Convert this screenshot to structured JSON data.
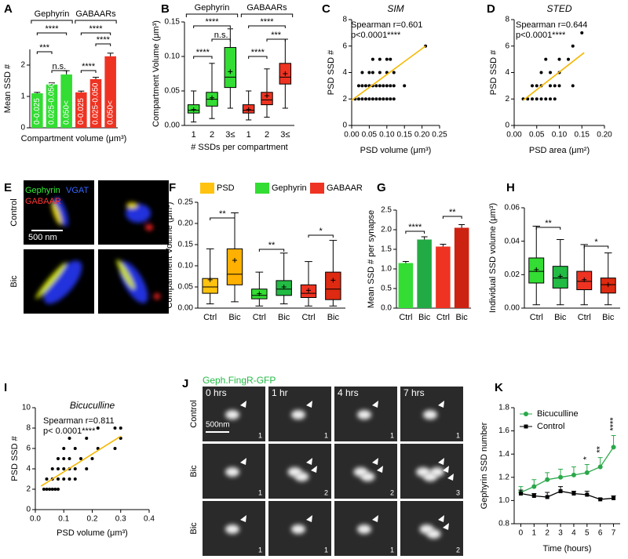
{
  "chart_data": [
    {
      "type": "bar",
      "panel": "A",
      "ylabel": "Mean SSD #",
      "xlabel": "Compartment volume (μm³)",
      "group_labels": [
        "Gephyrin",
        "GABAARs"
      ],
      "categories": [
        "0-0.025",
        "0.025-0.050",
        "0.050<",
        "0-0.025",
        "0.025-0.050",
        "0.050<"
      ],
      "values": [
        1.1,
        1.38,
        1.7,
        1.13,
        1.55,
        2.28
      ],
      "errors": [
        0.03,
        0.05,
        0.12,
        0.04,
        0.06,
        0.1
      ],
      "colors": [
        "#33dd33",
        "#33dd33",
        "#33dd33",
        "#ee3322",
        "#ee3322",
        "#ee3322"
      ],
      "ylim": [
        0,
        2.5
      ],
      "yticks": [
        0,
        1,
        2
      ],
      "significance": [
        "****",
        "***",
        "n.s.",
        "****",
        "****",
        "****"
      ]
    },
    {
      "type": "box",
      "panel": "B",
      "ylabel": "Compartment Volume (μm³)",
      "xlabel": "# SSDs per compartment",
      "group_labels": [
        "Gephyrin",
        "GABAARs"
      ],
      "categories": [
        "1",
        "2",
        "3≤",
        "1",
        "2",
        "3≤"
      ],
      "boxes": [
        {
          "min": 0.005,
          "q1": 0.018,
          "median": 0.022,
          "q3": 0.03,
          "max": 0.05,
          "mean": 0.023
        },
        {
          "min": 0.01,
          "q1": 0.028,
          "median": 0.038,
          "q3": 0.048,
          "max": 0.09,
          "mean": 0.04
        },
        {
          "min": 0.025,
          "q1": 0.055,
          "median": 0.07,
          "q3": 0.113,
          "max": 0.14,
          "mean": 0.078
        },
        {
          "min": 0.008,
          "q1": 0.018,
          "median": 0.022,
          "q3": 0.03,
          "max": 0.05,
          "mean": 0.023
        },
        {
          "min": 0.012,
          "q1": 0.03,
          "median": 0.037,
          "q3": 0.048,
          "max": 0.082,
          "mean": 0.043
        },
        {
          "min": 0.025,
          "q1": 0.06,
          "median": 0.07,
          "q3": 0.09,
          "max": 0.125,
          "mean": 0.075
        }
      ],
      "colors": [
        "#33dd33",
        "#33dd33",
        "#33dd33",
        "#ee3322",
        "#ee3322",
        "#ee3322"
      ],
      "ylim": [
        0,
        0.15
      ],
      "yticks": [
        {
          "value": 0,
          "label": "0.00"
        },
        0.05,
        {
          "value": 0.1,
          "label": "0.10"
        },
        {
          "value": 0.15,
          "label": "0.15"
        }
      ],
      "significance": [
        "****",
        "n.s.",
        "****",
        "****",
        "***",
        "****"
      ]
    },
    {
      "type": "scatter",
      "panel": "C",
      "title": "SIM",
      "ylabel": "PSD SSD #",
      "xlabel": "PSD volume (μm³)",
      "annotations": [
        "Spearman r=0.601",
        "p<0.0001****"
      ],
      "color": "#000000",
      "x": [
        0.01,
        0.02,
        0.03,
        0.04,
        0.05,
        0.06,
        0.07,
        0.08,
        0.09,
        0.1,
        0.11,
        0.12,
        0.02,
        0.03,
        0.04,
        0.05,
        0.06,
        0.07,
        0.08,
        0.09,
        0.1,
        0.11,
        0.12,
        0.15,
        0.03,
        0.05,
        0.06,
        0.08,
        0.1,
        0.12,
        0.06,
        0.08,
        0.1,
        0.11,
        0.21
      ],
      "y": [
        2,
        2,
        2,
        2,
        2,
        2,
        2,
        2,
        2,
        2,
        2,
        2,
        3,
        3,
        3,
        3,
        3,
        3,
        3,
        3,
        3,
        3,
        3,
        3,
        4,
        4,
        4,
        4,
        4,
        4,
        5,
        5,
        5,
        5,
        6
      ],
      "trendline": {
        "color": "#f5b800",
        "x": [
          0,
          0.21
        ],
        "y": [
          1.9,
          6
        ]
      },
      "xlim": [
        0,
        0.25
      ],
      "xticks": [
        {
          "value": 0,
          "label": "0.00"
        },
        0.05,
        {
          "value": 0.1,
          "label": "0.10"
        },
        0.15,
        {
          "value": 0.2,
          "label": "0.20"
        },
        0.25
      ],
      "ylim": [
        0,
        8
      ],
      "yticks": [
        0,
        2,
        4,
        6,
        8
      ]
    },
    {
      "type": "scatter",
      "panel": "D",
      "title": "STED",
      "ylabel": "PSD SSD #",
      "xlabel": "PSD area (μm²)",
      "annotations": [
        "Spearman r=0.644",
        "p<0.0001****"
      ],
      "color": "#000000",
      "x": [
        0.02,
        0.03,
        0.04,
        0.05,
        0.06,
        0.07,
        0.08,
        0.09,
        0.04,
        0.05,
        0.06,
        0.08,
        0.09,
        0.1,
        0.13,
        0.06,
        0.08,
        0.1,
        0.07,
        0.1,
        0.12,
        0.13,
        0.15
      ],
      "y": [
        2,
        2,
        2,
        2,
        2,
        2,
        2,
        2,
        3,
        3,
        3,
        3,
        3,
        3,
        3,
        4,
        4,
        4,
        5,
        5,
        5,
        6,
        7
      ],
      "trendline": {
        "color": "#f5b800",
        "x": [
          0.02,
          0.155
        ],
        "y": [
          1.9,
          5.5
        ]
      },
      "xlim": [
        0,
        0.2
      ],
      "xticks": [
        {
          "value": 0,
          "label": "0.00"
        },
        0.05,
        {
          "value": 0.1,
          "label": "0.10"
        },
        0.15,
        {
          "value": 0.2,
          "label": "0.20"
        }
      ],
      "ylim": [
        0,
        8
      ],
      "yticks": [
        0,
        2,
        4,
        6,
        8
      ]
    },
    {
      "type": "box",
      "panel": "F",
      "ylabel": "Compartment Volume (μm³)",
      "legend": [
        {
          "name": "PSD",
          "color": "#ffc20e"
        },
        {
          "name": "Gephyrin",
          "color": "#33dd33"
        },
        {
          "name": "GABAAR",
          "color": "#ee3322"
        }
      ],
      "categories": [
        "Ctrl",
        "Bic",
        "Ctrl",
        "Bic",
        "Ctrl",
        "Bic"
      ],
      "boxes": [
        {
          "min": 0.01,
          "q1": 0.035,
          "median": 0.05,
          "q3": 0.07,
          "max": 0.14,
          "mean": 0.067
        },
        {
          "min": 0.015,
          "q1": 0.055,
          "median": 0.08,
          "q3": 0.14,
          "max": 0.225,
          "mean": 0.113
        },
        {
          "min": 0.005,
          "q1": 0.022,
          "median": 0.03,
          "q3": 0.045,
          "max": 0.085,
          "mean": 0.034
        },
        {
          "min": 0.01,
          "q1": 0.03,
          "median": 0.045,
          "q3": 0.065,
          "max": 0.13,
          "mean": 0.05
        },
        {
          "min": 0.005,
          "q1": 0.025,
          "median": 0.035,
          "q3": 0.055,
          "max": 0.11,
          "mean": 0.042
        },
        {
          "min": 0.005,
          "q1": 0.02,
          "median": 0.045,
          "q3": 0.085,
          "max": 0.16,
          "mean": 0.066
        }
      ],
      "colors": [
        "#ffc20e",
        "#ffb000",
        "#33dd33",
        "#22bb44",
        "#ee3322",
        "#dd2a11"
      ],
      "ylim": [
        0,
        0.25
      ],
      "yticks": [
        {
          "value": 0,
          "label": "0.00"
        },
        0.05,
        {
          "value": 0.1,
          "label": "0.10"
        },
        0.15,
        {
          "value": 0.2,
          "label": "0.20"
        },
        0.25
      ],
      "significance": [
        "**",
        "**",
        "*"
      ]
    },
    {
      "type": "bar",
      "panel": "G",
      "ylabel": "Mean SSD # per synapse",
      "categories": [
        "Ctrl",
        "Bic",
        "Ctrl",
        "Bic"
      ],
      "values": [
        1.15,
        1.75,
        1.57,
        2.05
      ],
      "errors": [
        0.04,
        0.07,
        0.06,
        0.08
      ],
      "colors": [
        "#33dd33",
        "#22aa44",
        "#ee3322",
        "#cc2211"
      ],
      "ylim": [
        0,
        2.5
      ],
      "yticks": [
        {
          "value": 0,
          "label": "0.0"
        },
        0.5,
        {
          "value": 1,
          "label": "1.0"
        },
        1.5,
        {
          "value": 2,
          "label": "2.0"
        },
        2.5
      ],
      "significance": [
        "****",
        "**"
      ]
    },
    {
      "type": "box",
      "panel": "H",
      "ylabel": "Individual SSD volume (μm³)",
      "categories": [
        "Ctrl",
        "Bic",
        "Ctrl",
        "Bic"
      ],
      "boxes": [
        {
          "min": 0.002,
          "q1": 0.015,
          "median": 0.022,
          "q3": 0.03,
          "max": 0.049,
          "mean": 0.023
        },
        {
          "min": 0.002,
          "q1": 0.012,
          "median": 0.018,
          "q3": 0.025,
          "max": 0.041,
          "mean": 0.019
        },
        {
          "min": 0.002,
          "q1": 0.011,
          "median": 0.016,
          "q3": 0.022,
          "max": 0.038,
          "mean": 0.017
        },
        {
          "min": 0.002,
          "q1": 0.009,
          "median": 0.014,
          "q3": 0.018,
          "max": 0.033,
          "mean": 0.014
        }
      ],
      "colors": [
        "#33dd33",
        "#22bb44",
        "#ee3322",
        "#dd2a11"
      ],
      "ylim": [
        0,
        0.06
      ],
      "yticks": [
        {
          "value": 0,
          "label": "0.00"
        },
        0.02,
        0.04,
        0.06
      ],
      "significance": [
        "**",
        "*"
      ]
    },
    {
      "type": "scatter",
      "panel": "I",
      "title": "Bicuculline",
      "ylabel": "PSD SSD #",
      "xlabel": "PSD volume (μm³)",
      "annotations": [
        "Spearman r=0.811",
        "p< 0.0001****"
      ],
      "color": "#000000",
      "x": [
        0.03,
        0.04,
        0.05,
        0.06,
        0.07,
        0.08,
        0.04,
        0.06,
        0.08,
        0.1,
        0.12,
        0.14,
        0.06,
        0.08,
        0.1,
        0.12,
        0.14,
        0.18,
        0.08,
        0.1,
        0.12,
        0.16,
        0.2,
        0.1,
        0.14,
        0.22,
        0.28,
        0.12,
        0.18,
        0.3,
        0.22,
        0.28,
        0.3
      ],
      "y": [
        2,
        2,
        2,
        2,
        2,
        2,
        3,
        3,
        3,
        3,
        3,
        3,
        4,
        4,
        4,
        4,
        4,
        4,
        5,
        5,
        5,
        5,
        5,
        6,
        6,
        6,
        6,
        7,
        7,
        7,
        8,
        8,
        8
      ],
      "trendline": {
        "color": "#f5b800",
        "x": [
          0.02,
          0.3
        ],
        "y": [
          2.3,
          7.2
        ]
      },
      "xlim": [
        0,
        0.4
      ],
      "xticks": [
        {
          "value": 0,
          "label": "0.0"
        },
        0.1,
        0.2,
        0.3,
        0.4
      ],
      "ylim": [
        0,
        10
      ],
      "yticks": [
        0,
        2,
        4,
        6,
        8,
        10
      ]
    },
    {
      "type": "line",
      "panel": "K",
      "ylabel": "Gephyrin SSD number",
      "xlabel": "Time (hours)",
      "x": [
        0,
        1,
        2,
        3,
        4,
        5,
        6,
        7
      ],
      "series": [
        {
          "name": "Bicuculline",
          "color": "#2aa84a",
          "marker": "circle",
          "values": [
            1.07,
            1.12,
            1.18,
            1.2,
            1.22,
            1.24,
            1.29,
            1.46
          ],
          "errors": [
            0.05,
            0.06,
            0.06,
            0.07,
            0.07,
            0.07,
            0.08,
            0.1
          ]
        },
        {
          "name": "Control",
          "color": "#000000",
          "marker": "square",
          "values": [
            1.06,
            1.04,
            1.03,
            1.08,
            1.06,
            1.05,
            1.01,
            1.02
          ],
          "errors": [
            0.03,
            0.02,
            0.04,
            0.04,
            0.02,
            0.03,
            0.01,
            0.02
          ]
        }
      ],
      "significance": [
        {
          "x": 5,
          "text": "*"
        },
        {
          "x": 6,
          "text": "**"
        },
        {
          "x": 7,
          "text": "****"
        }
      ],
      "xlim": [
        -0.5,
        7.5
      ],
      "xticks": [
        0,
        1,
        2,
        3,
        4,
        5,
        6,
        7
      ],
      "ylim": [
        0.8,
        1.8
      ],
      "yticks": [
        0.8,
        {
          "value": 1,
          "label": "1.0"
        },
        1.2,
        1.4,
        1.6,
        1.8
      ]
    }
  ],
  "image_panels": {
    "E": {
      "panel": "E",
      "channels": [
        "Gephyrin",
        "VGAT",
        "GABAAR"
      ],
      "rows": [
        "Control",
        "Bic"
      ],
      "scale": "500 nm"
    },
    "J": {
      "panel": "J",
      "title": "Geph.FingR-GFP",
      "columns": [
        "0 hrs",
        "1 hr",
        "4 hrs",
        "7 hrs"
      ],
      "rows": [
        "Control",
        "Bic",
        "Bic"
      ],
      "counts": [
        [
          1,
          1,
          1,
          1
        ],
        [
          1,
          2,
          2,
          3
        ],
        [
          1,
          1,
          1,
          2
        ]
      ],
      "scale": "500nm"
    }
  }
}
